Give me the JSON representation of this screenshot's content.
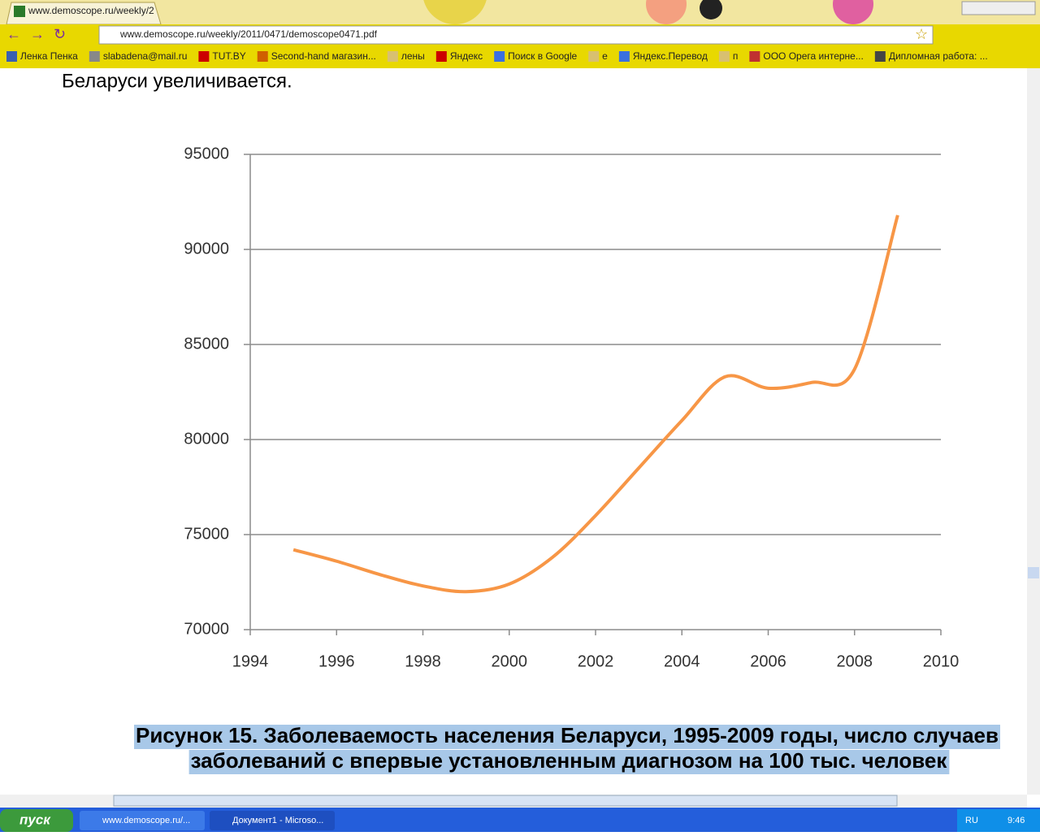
{
  "browser": {
    "tab_title": "www.demoscope.ru/weekly/2",
    "url": "www.demoscope.ru/weekly/2011/0471/demoscope0471.pdf",
    "bookmarks": [
      "Ленка Пенка",
      "slabadena@mail.ru",
      "TUT.BY",
      "Second-hand магазин...",
      "лены",
      "Яндекс",
      "Поиск в Google",
      "е",
      "Яндекс.Перевод",
      "п",
      "ООО Орега интерне...",
      "Дипломная работа: ..."
    ]
  },
  "document": {
    "intro_text": "Беларуси увеличивается.",
    "caption_lines": [
      "Рисунок 15. Заболеваемость населения Беларуси, 1995-2009 годы, число случаев",
      "заболеваний с впервые установленным диагнозом на 100 тыс. человек"
    ]
  },
  "chart_data": {
    "type": "line",
    "x": [
      1995,
      1996,
      1997,
      1998,
      1999,
      2000,
      2001,
      2002,
      2003,
      2004,
      2005,
      2006,
      2007,
      2008,
      2009
    ],
    "values": [
      74200,
      73600,
      72900,
      72300,
      72000,
      72400,
      73800,
      76000,
      78500,
      81000,
      83300,
      82700,
      83000,
      83700,
      91800
    ],
    "color": "#f79646",
    "xlim": [
      1994,
      2010
    ],
    "xticks": [
      1994,
      1996,
      1998,
      2000,
      2002,
      2004,
      2006,
      2008,
      2010
    ],
    "ylim": [
      70000,
      95000
    ],
    "yticks": [
      70000,
      75000,
      80000,
      85000,
      90000,
      95000
    ],
    "grid": true
  },
  "taskbar": {
    "start": "пуск",
    "items": [
      "www.demoscope.ru/...",
      "Документ1 - Microso..."
    ],
    "language": "RU",
    "time": "9:46"
  }
}
